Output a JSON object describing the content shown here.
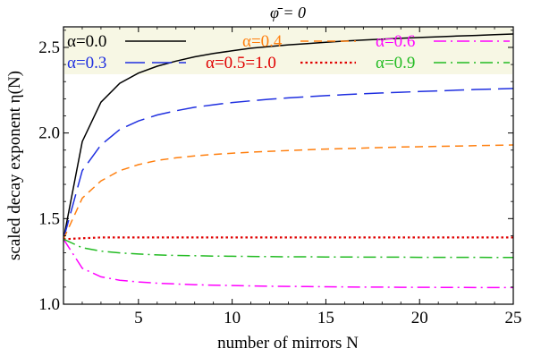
{
  "chart_data": {
    "type": "line",
    "title": "φ̄ = 0",
    "xlabel": "number of mirrors N",
    "ylabel": "scaled decay exponent η(N)",
    "xlim": [
      1,
      25
    ],
    "ylim": [
      1.0,
      2.62
    ],
    "xticks": [
      5,
      10,
      15,
      20,
      25
    ],
    "yticks": [
      1.0,
      1.5,
      2.0,
      2.5
    ],
    "xtick_labels": [
      "5",
      "10",
      "15",
      "20",
      "25"
    ],
    "ytick_labels": [
      "1.0",
      "1.5",
      "2.0",
      "2.5"
    ],
    "grid": false,
    "legend_position": "top",
    "legend_background": "#f7f7e4",
    "x": [
      1,
      2,
      3,
      4,
      5,
      6,
      7,
      8,
      9,
      10,
      11,
      12,
      13,
      14,
      15,
      16,
      17,
      18,
      19,
      20,
      21,
      22,
      23,
      24,
      25
    ],
    "series": [
      {
        "name": "α=0.0",
        "color": "#000000",
        "dash": "solid",
        "values": [
          1.38,
          1.95,
          2.18,
          2.29,
          2.35,
          2.39,
          2.42,
          2.445,
          2.465,
          2.48,
          2.495,
          2.505,
          2.515,
          2.522,
          2.53,
          2.537,
          2.543,
          2.548,
          2.553,
          2.558,
          2.562,
          2.566,
          2.57,
          2.574,
          2.578
        ]
      },
      {
        "name": "α=0.3",
        "color": "#1f2fe0",
        "dash": "long-dash",
        "values": [
          1.38,
          1.78,
          1.93,
          2.02,
          2.07,
          2.105,
          2.13,
          2.15,
          2.165,
          2.178,
          2.188,
          2.197,
          2.205,
          2.212,
          2.218,
          2.224,
          2.229,
          2.234,
          2.238,
          2.242,
          2.246,
          2.25,
          2.254,
          2.257,
          2.26
        ]
      },
      {
        "name": "α=0.4",
        "color": "#ff7f0e",
        "dash": "dash",
        "values": [
          1.38,
          1.62,
          1.72,
          1.78,
          1.815,
          1.84,
          1.855,
          1.866,
          1.875,
          1.882,
          1.888,
          1.893,
          1.898,
          1.902,
          1.906,
          1.909,
          1.912,
          1.915,
          1.918,
          1.92,
          1.922,
          1.924,
          1.926,
          1.928,
          1.93
        ]
      },
      {
        "name": "α=0.6",
        "color": "#ff00ff",
        "dash": "dash-dot",
        "values": [
          1.38,
          1.21,
          1.16,
          1.14,
          1.13,
          1.123,
          1.118,
          1.114,
          1.111,
          1.109,
          1.107,
          1.105,
          1.104,
          1.103,
          1.102,
          1.101,
          1.1,
          1.1,
          1.099,
          1.099,
          1.098,
          1.098,
          1.097,
          1.097,
          1.097
        ]
      },
      {
        "name": "α=0.5=1.0",
        "color": "#e00000",
        "dash": "dotted",
        "values": [
          1.38,
          1.385,
          1.39,
          1.39,
          1.39,
          1.39,
          1.39,
          1.39,
          1.39,
          1.39,
          1.39,
          1.39,
          1.39,
          1.39,
          1.39,
          1.39,
          1.39,
          1.39,
          1.39,
          1.39,
          1.39,
          1.39,
          1.39,
          1.39,
          1.39
        ]
      },
      {
        "name": "α=0.9",
        "color": "#22bb22",
        "dash": "dash-dot",
        "values": [
          1.38,
          1.33,
          1.31,
          1.3,
          1.293,
          1.288,
          1.285,
          1.283,
          1.281,
          1.28,
          1.279,
          1.278,
          1.277,
          1.277,
          1.276,
          1.276,
          1.275,
          1.275,
          1.275,
          1.274,
          1.274,
          1.274,
          1.274,
          1.273,
          1.273
        ]
      }
    ],
    "legend": [
      {
        "label": "α=0.0",
        "series": 0
      },
      {
        "label": "α=0.4",
        "series": 2
      },
      {
        "label": "α=0.6",
        "series": 3
      },
      {
        "label": "α=0.3",
        "series": 1
      },
      {
        "label": "α=0.5=1.0",
        "series": 4
      },
      {
        "label": "α=0.9",
        "series": 5
      }
    ]
  }
}
